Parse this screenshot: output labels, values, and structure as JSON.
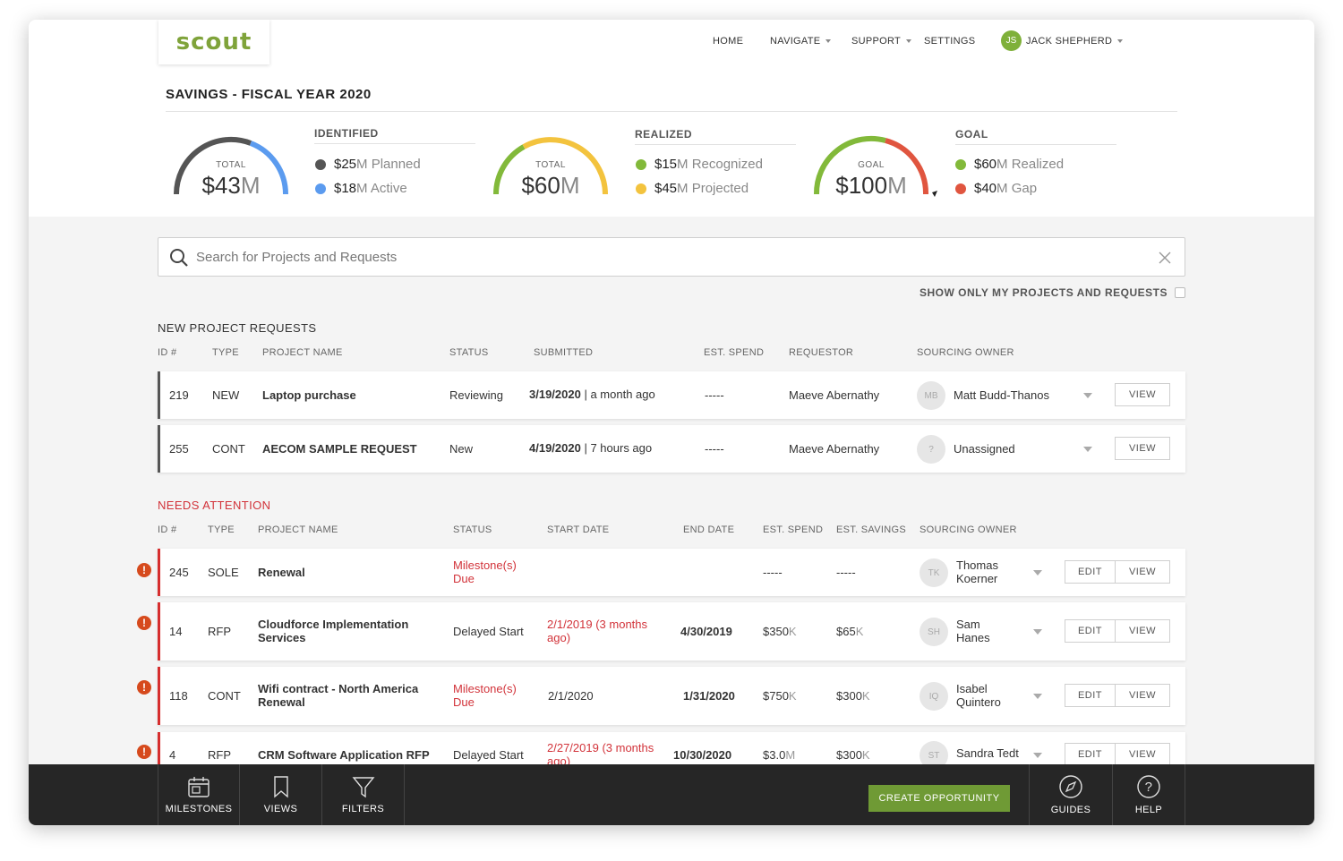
{
  "app": {
    "logo": "scout"
  },
  "nav": {
    "home": "HOME",
    "navigate": "NAVIGATE",
    "support": "SUPPORT",
    "settings": "SETTINGS",
    "user_initials": "JS",
    "user_name": "JACK SHEPHERD"
  },
  "savings": {
    "title": "SAVINGS - FISCAL YEAR 2020",
    "gauges": [
      {
        "small": "TOTAL",
        "value": "$43",
        "unit": "M",
        "colors": [
          "#555555",
          "#5b9bef"
        ]
      },
      {
        "small": "TOTAL",
        "value": "$60",
        "unit": "M",
        "colors": [
          "#82b93a",
          "#f3c33e"
        ]
      },
      {
        "small": "GOAL",
        "value": "$100",
        "unit": "M",
        "colors": [
          "#82b93a",
          "#e0553f"
        ]
      }
    ],
    "identified": {
      "label": "IDENTIFIED",
      "items": [
        {
          "amount": "$25",
          "rest": "M Planned",
          "color": "#555555"
        },
        {
          "amount": "$18",
          "rest": "M Active",
          "color": "#5b9bef"
        }
      ]
    },
    "realized": {
      "label": "REALIZED",
      "items": [
        {
          "amount": "$15",
          "rest": "M Recognized",
          "color": "#82b93a"
        },
        {
          "amount": "$45",
          "rest": "M Projected",
          "color": "#f3c33e"
        }
      ]
    },
    "goal": {
      "label": "GOAL",
      "items": [
        {
          "amount": "$60",
          "rest": "M Realized",
          "color": "#82b93a"
        },
        {
          "amount": "$40",
          "rest": "M Gap",
          "color": "#e0553f"
        }
      ]
    }
  },
  "search": {
    "placeholder": "Search for Projects and Requests",
    "value": ""
  },
  "filter": {
    "show_only_mine": "SHOW ONLY MY PROJECTS AND REQUESTS"
  },
  "new_requests": {
    "title": "NEW PROJECT REQUESTS",
    "headers": [
      "ID #",
      "TYPE",
      "PROJECT NAME",
      "STATUS",
      "SUBMITTED",
      "EST. SPEND",
      "REQUESTOR",
      "SOURCING OWNER"
    ],
    "rows": [
      {
        "id": "219",
        "type": "NEW",
        "name": "Laptop purchase",
        "status": "Reviewing",
        "date": "3/19/2020",
        "ago": "a month ago",
        "spend": "-----",
        "requestor": "Maeve Abernathy",
        "owner_initials": "MB",
        "owner": "Matt Budd-Thanos",
        "view": "VIEW"
      },
      {
        "id": "255",
        "type": "CONT",
        "name": "AECOM SAMPLE REQUEST",
        "status": "New",
        "date": "4/19/2020",
        "ago": "7 hours ago",
        "spend": "-----",
        "requestor": "Maeve Abernathy",
        "owner_initials": "?",
        "owner": "Unassigned",
        "view": "VIEW"
      }
    ]
  },
  "attention": {
    "title": "NEEDS ATTENTION",
    "headers": [
      "ID #",
      "TYPE",
      "PROJECT NAME",
      "STATUS",
      "START DATE",
      "END DATE",
      "EST. SPEND",
      "EST. SAVINGS",
      "SOURCING OWNER"
    ],
    "rows": [
      {
        "id": "245",
        "type": "SOLE",
        "name1": "Renewal",
        "name2": "",
        "status1": "Milestone(s)",
        "status2": "Due",
        "start1": "",
        "start2": "",
        "end": "",
        "spend": "-----",
        "spend_unit": "",
        "savings": "-----",
        "savings_unit": "",
        "owner_initials": "TK",
        "owner1": "Thomas",
        "owner2": "Koerner",
        "edit": "EDIT",
        "view": "VIEW"
      },
      {
        "id": "14",
        "type": "RFP",
        "name1": "Cloudforce Implementation",
        "name2": "Services",
        "status1": "Delayed Start",
        "status2": "",
        "start1": "2/1/2019 (3 months",
        "start2": "ago)",
        "end": "4/30/2019",
        "spend": "$350",
        "spend_unit": "K",
        "savings": "$65",
        "savings_unit": "K",
        "owner_initials": "SH",
        "owner1": "Sam",
        "owner2": "Hanes",
        "edit": "EDIT",
        "view": "VIEW"
      },
      {
        "id": "118",
        "type": "CONT",
        "name1": "Wifi contract - North America",
        "name2": "Renewal",
        "status1": "Milestone(s)",
        "status2": "Due",
        "start1": "2/1/2020",
        "start2": "",
        "end": "1/31/2020",
        "spend": "$750",
        "spend_unit": "K",
        "savings": "$300",
        "savings_unit": "K",
        "owner_initials": "IQ",
        "owner1": "Isabel",
        "owner2": "Quintero",
        "edit": "EDIT",
        "view": "VIEW"
      },
      {
        "id": "4",
        "type": "RFP",
        "name1": "CRM Software Application RFP",
        "name2": "",
        "status1": "Delayed Start",
        "status2": "",
        "start1": "2/27/2019 (3 months",
        "start2": "ago)",
        "end": "10/30/2020",
        "spend": "$3.0",
        "spend_unit": "M",
        "savings": "$300",
        "savings_unit": "K",
        "owner_initials": "ST",
        "owner1": "Sandra Tedt",
        "owner2": "",
        "edit": "EDIT",
        "view": "VIEW"
      }
    ]
  },
  "bottombar": {
    "milestones": "MILESTONES",
    "views": "VIEWS",
    "filters": "FILTERS",
    "create": "CREATE OPPORTUNITY",
    "guides": "GUIDES",
    "help": "HELP"
  }
}
